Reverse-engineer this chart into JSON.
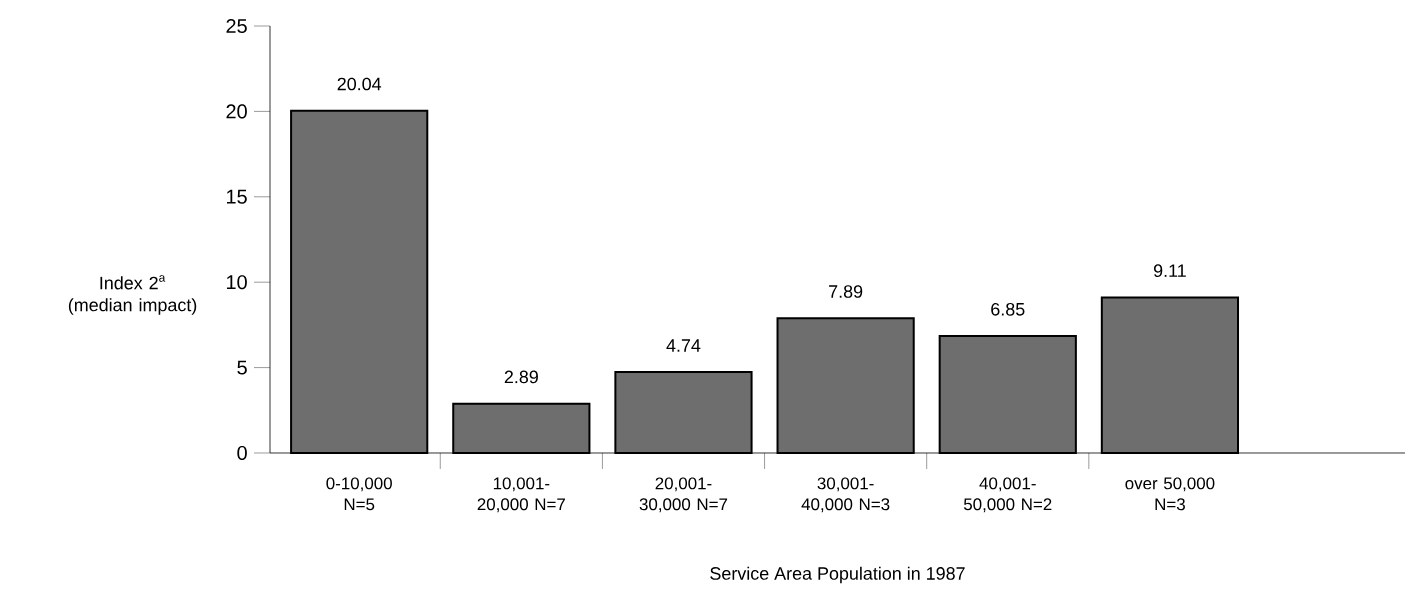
{
  "chart_data": {
    "type": "bar",
    "xlabel": "Service Area Population in 1987",
    "ylabel": "Index 2$^{a}$ (median impact)",
    "categories": [
      "0-10,000 N=5",
      "10,001-20,000 N=7",
      "20,001-30,000 N=7",
      "30,001-40,000 N=3",
      "40,001-50,000 N=2",
      "over 50,000 N=3"
    ],
    "values": [
      20.04,
      2.89,
      4.74,
      7.89,
      6.85,
      9.11
    ],
    "color": "#6e6e6e",
    "ylim": [
      0,
      25
    ],
    "yticks": [
      0,
      5,
      10,
      15,
      20,
      25
    ],
    "data_labels": true
  }
}
